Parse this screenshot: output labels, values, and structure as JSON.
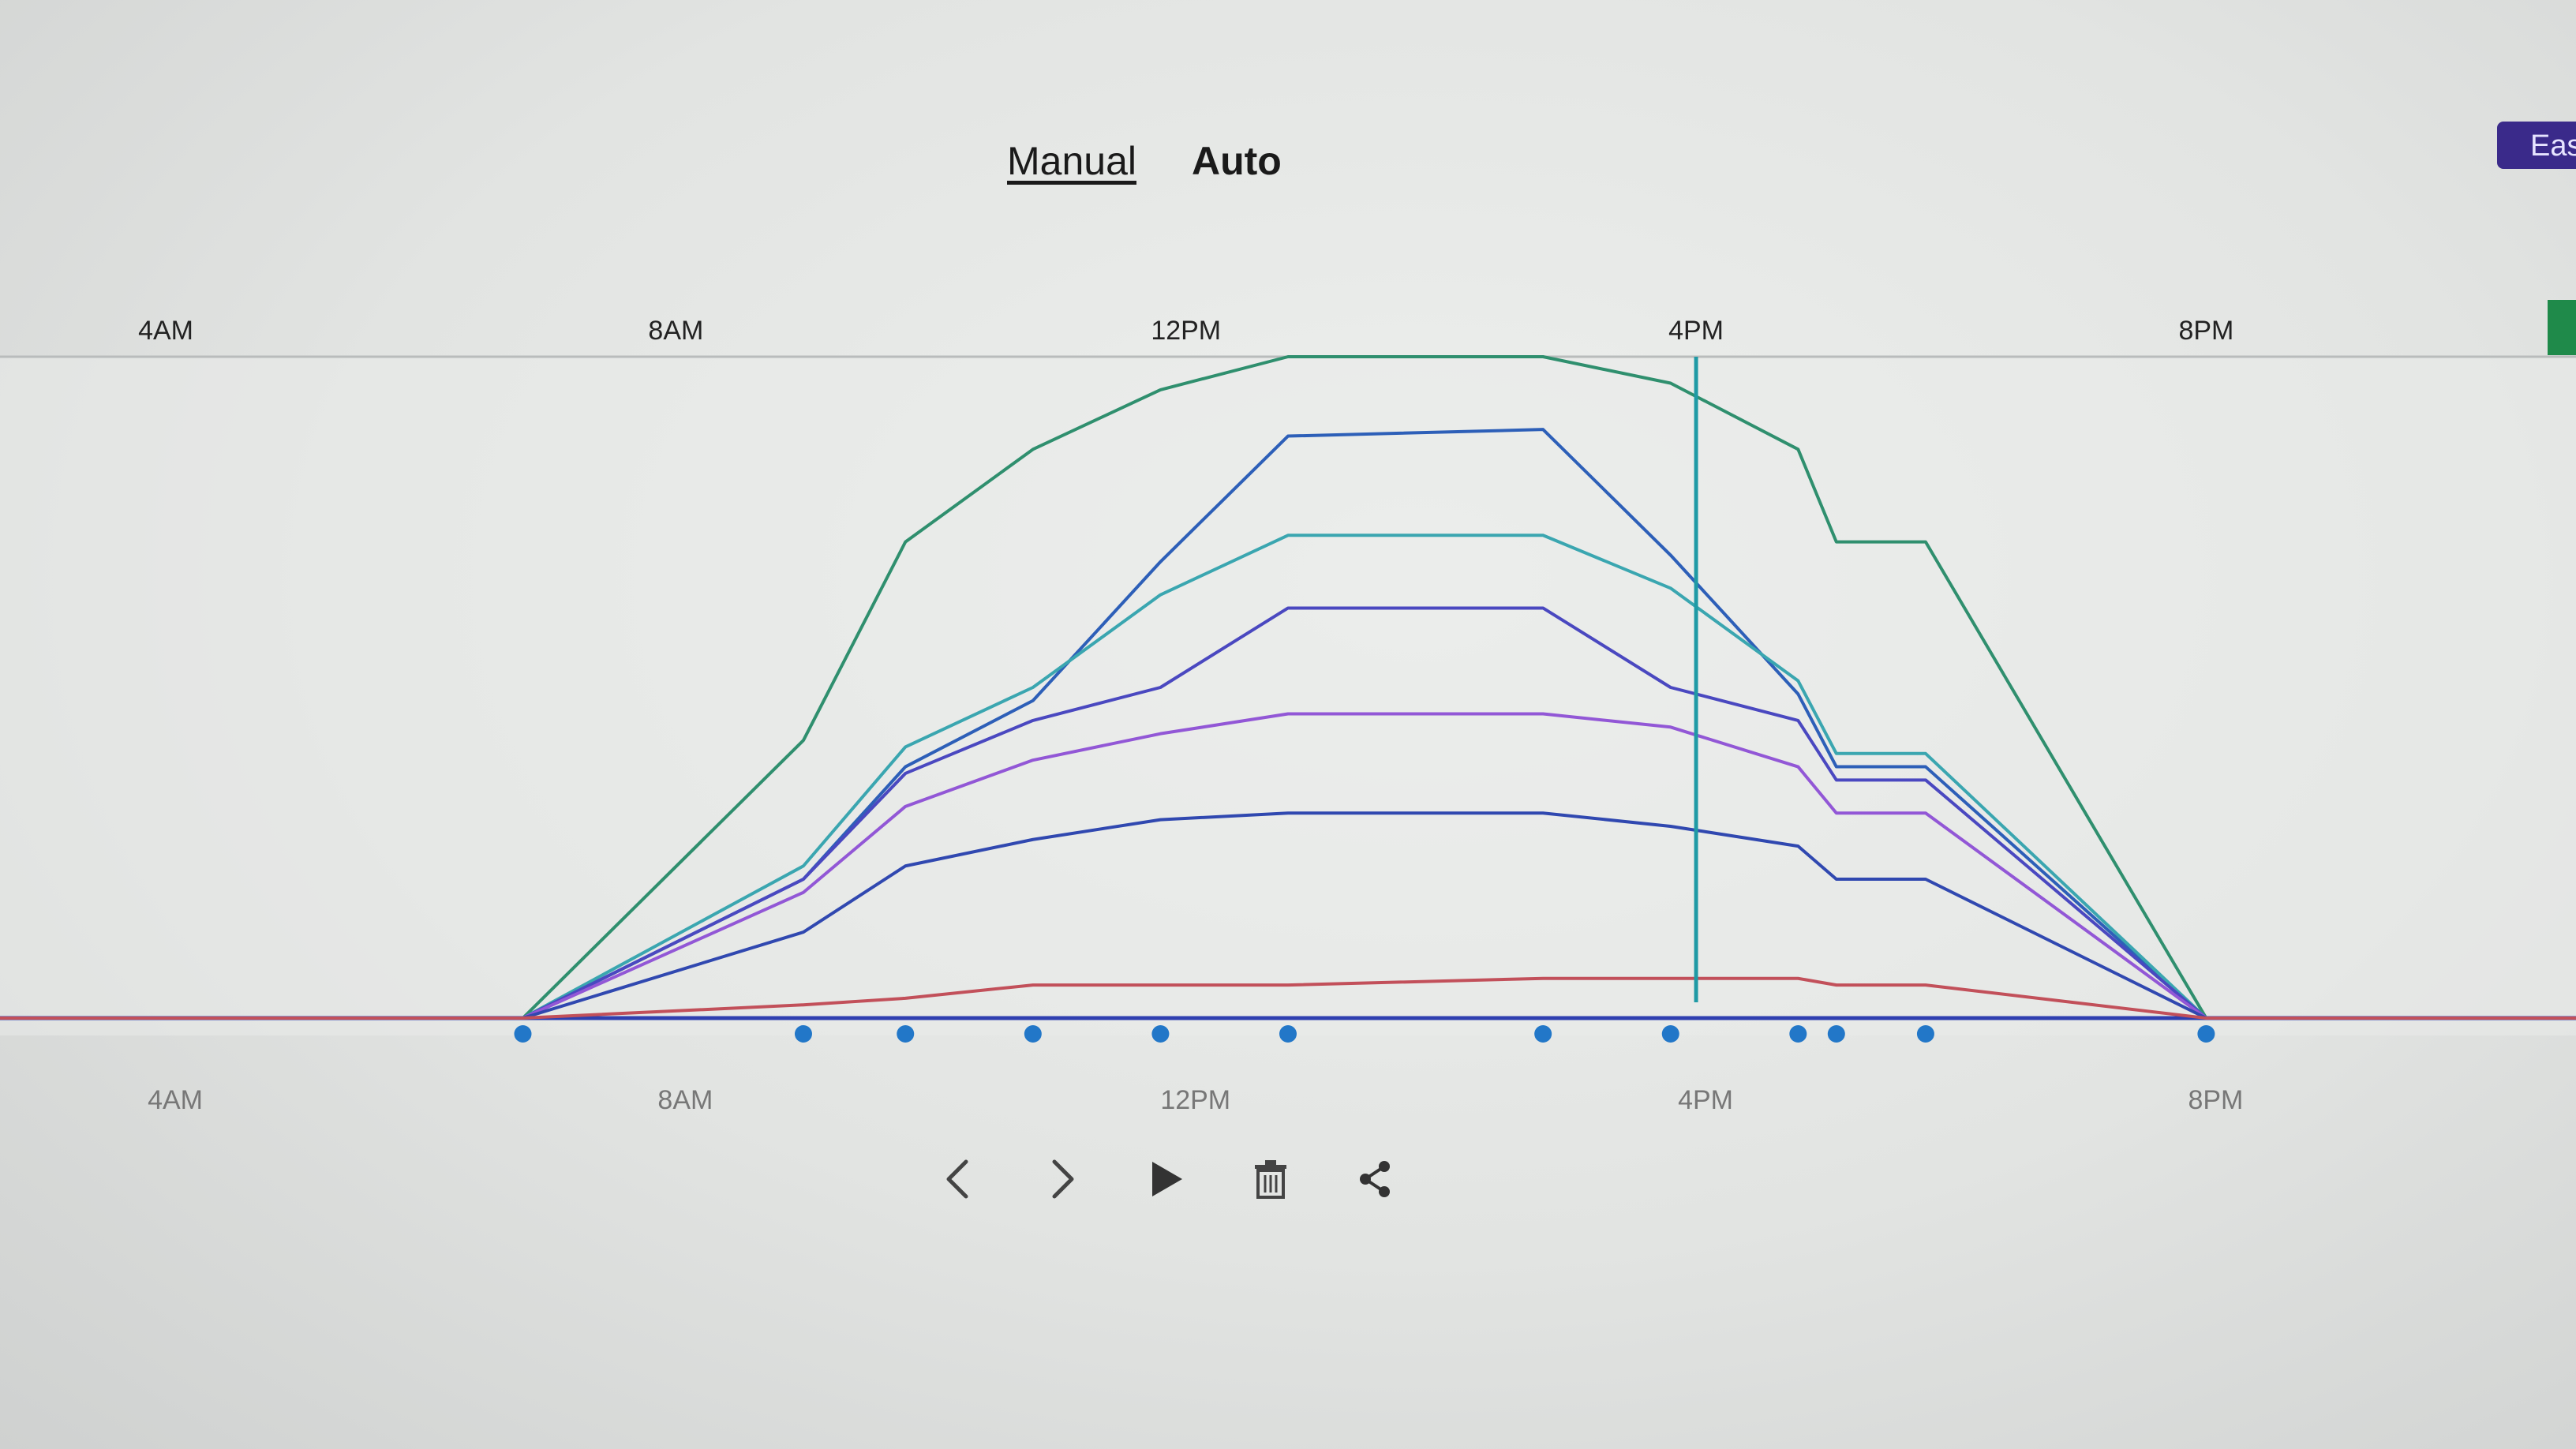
{
  "mode_tabs": {
    "manual_label": "Manual",
    "auto_label": "Auto",
    "selected": "Auto"
  },
  "corner_button": {
    "label": "Eas"
  },
  "colors": {
    "background": "#e2e4e2",
    "series_green": "#2f8f6e",
    "series_blue": "#2d5fb8",
    "series_teal": "#3aa6b0",
    "series_indigo": "#4a48c0",
    "series_violet": "#9257d6",
    "series_navy": "#3048b0",
    "series_red": "#c2505a",
    "baseline": "#2f3fb0",
    "control_points": "#2277c8",
    "cursor": "#1f9aa5",
    "corner_button": "#3a2a8a",
    "side_indicator": "#1f8a4a"
  },
  "chart_data": {
    "type": "line",
    "x_unit": "hour of day",
    "xlim": [
      2.7,
      22.9
    ],
    "ylim": [
      0,
      100
    ],
    "x_ticks": [
      {
        "value": 4,
        "label": "4AM"
      },
      {
        "value": 8,
        "label": "8AM"
      },
      {
        "value": 12,
        "label": "12PM"
      },
      {
        "value": 16,
        "label": "4PM"
      },
      {
        "value": 20,
        "label": "8PM"
      }
    ],
    "current_time": 16.0,
    "control_points_x": [
      6.8,
      9.0,
      9.8,
      10.8,
      11.8,
      12.8,
      14.8,
      15.8,
      16.8,
      17.1,
      17.8,
      20.0
    ],
    "series": [
      {
        "color_key": "series_green",
        "points": [
          [
            2.7,
            0
          ],
          [
            6.8,
            0
          ],
          [
            9.0,
            42
          ],
          [
            9.8,
            72
          ],
          [
            10.8,
            86
          ],
          [
            11.8,
            95
          ],
          [
            12.8,
            100
          ],
          [
            14.8,
            100
          ],
          [
            15.8,
            96
          ],
          [
            16.8,
            86
          ],
          [
            17.1,
            72
          ],
          [
            17.8,
            72
          ],
          [
            20.0,
            0
          ],
          [
            22.9,
            0
          ]
        ]
      },
      {
        "color_key": "series_blue",
        "points": [
          [
            2.7,
            0
          ],
          [
            6.8,
            0
          ],
          [
            9.0,
            21
          ],
          [
            9.8,
            38
          ],
          [
            10.8,
            48
          ],
          [
            11.8,
            69
          ],
          [
            12.8,
            88
          ],
          [
            14.8,
            89
          ],
          [
            15.8,
            70
          ],
          [
            16.8,
            49
          ],
          [
            17.1,
            38
          ],
          [
            17.8,
            38
          ],
          [
            20.0,
            0
          ],
          [
            22.9,
            0
          ]
        ]
      },
      {
        "color_key": "series_teal",
        "points": [
          [
            2.7,
            0
          ],
          [
            6.8,
            0
          ],
          [
            9.0,
            23
          ],
          [
            9.8,
            41
          ],
          [
            10.8,
            50
          ],
          [
            11.8,
            64
          ],
          [
            12.8,
            73
          ],
          [
            14.8,
            73
          ],
          [
            15.8,
            65
          ],
          [
            16.8,
            51
          ],
          [
            17.1,
            40
          ],
          [
            17.8,
            40
          ],
          [
            20.0,
            0
          ],
          [
            22.9,
            0
          ]
        ]
      },
      {
        "color_key": "series_indigo",
        "points": [
          [
            2.7,
            0
          ],
          [
            6.8,
            0
          ],
          [
            9.0,
            21
          ],
          [
            9.8,
            37
          ],
          [
            10.8,
            45
          ],
          [
            11.8,
            50
          ],
          [
            12.8,
            62
          ],
          [
            14.8,
            62
          ],
          [
            15.8,
            50
          ],
          [
            16.8,
            45
          ],
          [
            17.1,
            36
          ],
          [
            17.8,
            36
          ],
          [
            20.0,
            0
          ],
          [
            22.9,
            0
          ]
        ]
      },
      {
        "color_key": "series_violet",
        "points": [
          [
            2.7,
            0
          ],
          [
            6.8,
            0
          ],
          [
            9.0,
            19
          ],
          [
            9.8,
            32
          ],
          [
            10.8,
            39
          ],
          [
            11.8,
            43
          ],
          [
            12.8,
            46
          ],
          [
            14.8,
            46
          ],
          [
            15.8,
            44
          ],
          [
            16.8,
            38
          ],
          [
            17.1,
            31
          ],
          [
            17.8,
            31
          ],
          [
            20.0,
            0
          ],
          [
            22.9,
            0
          ]
        ]
      },
      {
        "color_key": "series_navy",
        "points": [
          [
            2.7,
            0
          ],
          [
            6.8,
            0
          ],
          [
            9.0,
            13
          ],
          [
            9.8,
            23
          ],
          [
            10.8,
            27
          ],
          [
            11.8,
            30
          ],
          [
            12.8,
            31
          ],
          [
            14.8,
            31
          ],
          [
            15.8,
            29
          ],
          [
            16.8,
            26
          ],
          [
            17.1,
            21
          ],
          [
            17.8,
            21
          ],
          [
            20.0,
            0
          ],
          [
            22.9,
            0
          ]
        ]
      },
      {
        "color_key": "series_red",
        "points": [
          [
            2.7,
            0
          ],
          [
            6.8,
            0
          ],
          [
            9.0,
            2
          ],
          [
            9.8,
            3
          ],
          [
            10.8,
            5
          ],
          [
            11.8,
            5
          ],
          [
            12.8,
            5
          ],
          [
            14.8,
            6
          ],
          [
            15.8,
            6
          ],
          [
            16.8,
            6
          ],
          [
            17.1,
            5
          ],
          [
            17.8,
            5
          ],
          [
            20.0,
            0
          ],
          [
            22.9,
            0
          ]
        ]
      }
    ]
  },
  "controls": [
    {
      "name": "previous-button",
      "icon": "chevron-left-icon"
    },
    {
      "name": "next-button",
      "icon": "chevron-right-icon"
    },
    {
      "name": "play-button",
      "icon": "play-icon"
    },
    {
      "name": "delete-button",
      "icon": "trash-icon"
    },
    {
      "name": "share-button",
      "icon": "share-icon"
    }
  ]
}
